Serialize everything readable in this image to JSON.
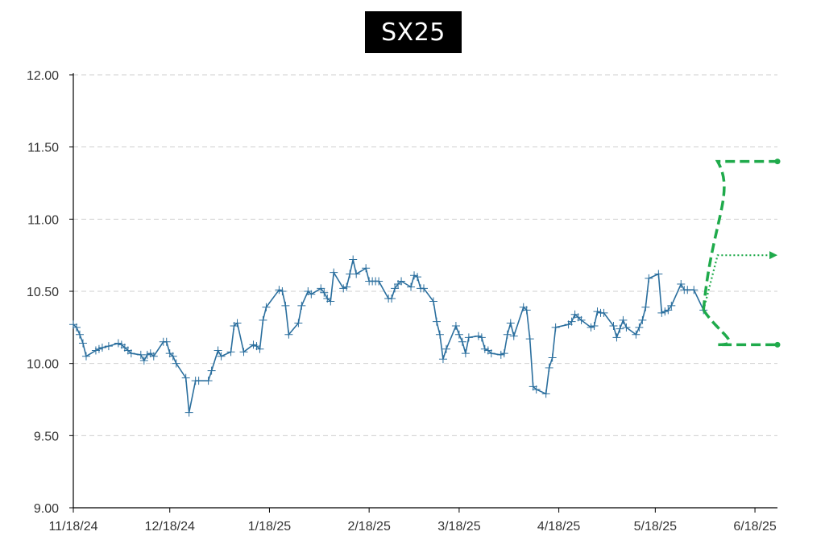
{
  "chart_data": {
    "type": "line",
    "title": "SX25",
    "xlabel": "",
    "ylabel": "",
    "ylim": [
      9.0,
      12.0
    ],
    "xlim": [
      "2024-11-18",
      "2025-06-25"
    ],
    "y_ticks": [
      "9.00",
      "9.50",
      "10.00",
      "10.50",
      "11.00",
      "11.50",
      "12.00"
    ],
    "x_ticks": [
      {
        "date": "2024-11-18",
        "label": "11/18/24"
      },
      {
        "date": "2024-12-18",
        "label": "12/18/24"
      },
      {
        "date": "2025-01-18",
        "label": "1/18/25"
      },
      {
        "date": "2025-02-18",
        "label": "2/18/25"
      },
      {
        "date": "2025-03-18",
        "label": "3/18/25"
      },
      {
        "date": "2025-04-18",
        "label": "4/18/25"
      },
      {
        "date": "2025-05-18",
        "label": "5/18/25"
      },
      {
        "date": "2025-06-18",
        "label": "6/18/25"
      }
    ],
    "grid": "horizontal-dashed",
    "series": [
      {
        "color": "#2b6f9e",
        "marker": "plus",
        "points": [
          [
            "2024-11-18",
            10.27
          ],
          [
            "2024-11-19",
            10.25
          ],
          [
            "2024-11-20",
            10.2
          ],
          [
            "2024-11-21",
            10.14
          ],
          [
            "2024-11-22",
            10.05
          ],
          [
            "2024-11-25",
            10.09
          ],
          [
            "2024-11-26",
            10.1
          ],
          [
            "2024-11-27",
            10.11
          ],
          [
            "2024-11-29",
            10.12
          ],
          [
            "2024-12-02",
            10.14
          ],
          [
            "2024-12-03",
            10.13
          ],
          [
            "2024-12-04",
            10.11
          ],
          [
            "2024-12-05",
            10.09
          ],
          [
            "2024-12-06",
            10.07
          ],
          [
            "2024-12-09",
            10.06
          ],
          [
            "2024-12-10",
            10.02
          ],
          [
            "2024-12-11",
            10.06
          ],
          [
            "2024-12-12",
            10.07
          ],
          [
            "2024-12-13",
            10.05
          ],
          [
            "2024-12-16",
            10.15
          ],
          [
            "2024-12-17",
            10.15
          ],
          [
            "2024-12-18",
            10.07
          ],
          [
            "2024-12-19",
            10.05
          ],
          [
            "2024-12-20",
            10.0
          ],
          [
            "2024-12-23",
            9.9
          ],
          [
            "2024-12-24",
            9.66
          ],
          [
            "2024-12-26",
            9.88
          ],
          [
            "2024-12-27",
            9.88
          ],
          [
            "2024-12-30",
            9.88
          ],
          [
            "2024-12-31",
            9.95
          ],
          [
            "2025-01-02",
            10.09
          ],
          [
            "2025-01-03",
            10.05
          ],
          [
            "2025-01-06",
            10.08
          ],
          [
            "2025-01-07",
            10.26
          ],
          [
            "2025-01-08",
            10.28
          ],
          [
            "2025-01-10",
            10.08
          ],
          [
            "2025-01-13",
            10.13
          ],
          [
            "2025-01-14",
            10.12
          ],
          [
            "2025-01-15",
            10.1
          ],
          [
            "2025-01-16",
            10.3
          ],
          [
            "2025-01-17",
            10.39
          ],
          [
            "2025-01-21",
            10.51
          ],
          [
            "2025-01-22",
            10.5
          ],
          [
            "2025-01-23",
            10.4
          ],
          [
            "2025-01-24",
            10.2
          ],
          [
            "2025-01-27",
            10.28
          ],
          [
            "2025-01-28",
            10.4
          ],
          [
            "2025-01-30",
            10.5
          ],
          [
            "2025-01-31",
            10.48
          ],
          [
            "2025-02-03",
            10.52
          ],
          [
            "2025-02-04",
            10.49
          ],
          [
            "2025-02-05",
            10.45
          ],
          [
            "2025-02-06",
            10.43
          ],
          [
            "2025-02-07",
            10.63
          ],
          [
            "2025-02-10",
            10.52
          ],
          [
            "2025-02-11",
            10.53
          ],
          [
            "2025-02-12",
            10.62
          ],
          [
            "2025-02-13",
            10.72
          ],
          [
            "2025-02-14",
            10.62
          ],
          [
            "2025-02-17",
            10.66
          ],
          [
            "2025-02-18",
            10.57
          ],
          [
            "2025-02-19",
            10.57
          ],
          [
            "2025-02-20",
            10.57
          ],
          [
            "2025-02-21",
            10.57
          ],
          [
            "2025-02-24",
            10.45
          ],
          [
            "2025-02-25",
            10.45
          ],
          [
            "2025-02-26",
            10.52
          ],
          [
            "2025-02-27",
            10.55
          ],
          [
            "2025-02-28",
            10.57
          ],
          [
            "2025-03-03",
            10.53
          ],
          [
            "2025-03-04",
            10.61
          ],
          [
            "2025-03-05",
            10.6
          ],
          [
            "2025-03-06",
            10.52
          ],
          [
            "2025-03-07",
            10.52
          ],
          [
            "2025-03-10",
            10.43
          ],
          [
            "2025-03-11",
            10.29
          ],
          [
            "2025-03-12",
            10.2
          ],
          [
            "2025-03-13",
            10.03
          ],
          [
            "2025-03-14",
            10.1
          ],
          [
            "2025-03-17",
            10.26
          ],
          [
            "2025-03-18",
            10.2
          ],
          [
            "2025-03-19",
            10.15
          ],
          [
            "2025-03-20",
            10.07
          ],
          [
            "2025-03-21",
            10.18
          ],
          [
            "2025-03-24",
            10.19
          ],
          [
            "2025-03-25",
            10.18
          ],
          [
            "2025-03-26",
            10.1
          ],
          [
            "2025-03-27",
            10.09
          ],
          [
            "2025-03-28",
            10.07
          ],
          [
            "2025-03-31",
            10.06
          ],
          [
            "2025-04-01",
            10.07
          ],
          [
            "2025-04-02",
            10.2
          ],
          [
            "2025-04-03",
            10.28
          ],
          [
            "2025-04-04",
            10.19
          ],
          [
            "2025-04-07",
            10.39
          ],
          [
            "2025-04-08",
            10.37
          ],
          [
            "2025-04-09",
            10.17
          ],
          [
            "2025-04-10",
            9.84
          ],
          [
            "2025-04-11",
            9.82
          ],
          [
            "2025-04-14",
            9.79
          ],
          [
            "2025-04-15",
            9.97
          ],
          [
            "2025-04-16",
            10.04
          ],
          [
            "2025-04-17",
            10.25
          ],
          [
            "2025-04-21",
            10.27
          ],
          [
            "2025-04-22",
            10.29
          ],
          [
            "2025-04-23",
            10.34
          ],
          [
            "2025-04-24",
            10.32
          ],
          [
            "2025-04-25",
            10.3
          ],
          [
            "2025-04-28",
            10.25
          ],
          [
            "2025-04-29",
            10.26
          ],
          [
            "2025-04-30",
            10.36
          ],
          [
            "2025-05-01",
            10.35
          ],
          [
            "2025-05-02",
            10.35
          ],
          [
            "2025-05-05",
            10.26
          ],
          [
            "2025-05-06",
            10.18
          ],
          [
            "2025-05-07",
            10.24
          ],
          [
            "2025-05-08",
            10.3
          ],
          [
            "2025-05-09",
            10.25
          ],
          [
            "2025-05-12",
            10.2
          ],
          [
            "2025-05-13",
            10.25
          ],
          [
            "2025-05-14",
            10.3
          ],
          [
            "2025-05-15",
            10.39
          ],
          [
            "2025-05-16",
            10.59
          ],
          [
            "2025-05-19",
            10.62
          ],
          [
            "2025-05-20",
            10.35
          ],
          [
            "2025-05-21",
            10.36
          ],
          [
            "2025-05-22",
            10.37
          ],
          [
            "2025-05-23",
            10.4
          ],
          [
            "2025-05-26",
            10.55
          ],
          [
            "2025-05-27",
            10.51
          ],
          [
            "2025-05-28",
            10.51
          ],
          [
            "2025-05-30",
            10.51
          ],
          [
            "2025-06-02",
            10.37
          ]
        ]
      }
    ],
    "projections": {
      "color": "#1faa4b",
      "start": [
        "2025-06-02",
        10.37
      ],
      "upper": {
        "style": "dashed",
        "end": [
          "2025-06-25",
          11.4
        ]
      },
      "middle": {
        "style": "dotted",
        "end": [
          "2025-06-25",
          10.75
        ]
      },
      "lower": {
        "style": "dashed",
        "end": [
          "2025-06-25",
          10.13
        ]
      }
    }
  }
}
